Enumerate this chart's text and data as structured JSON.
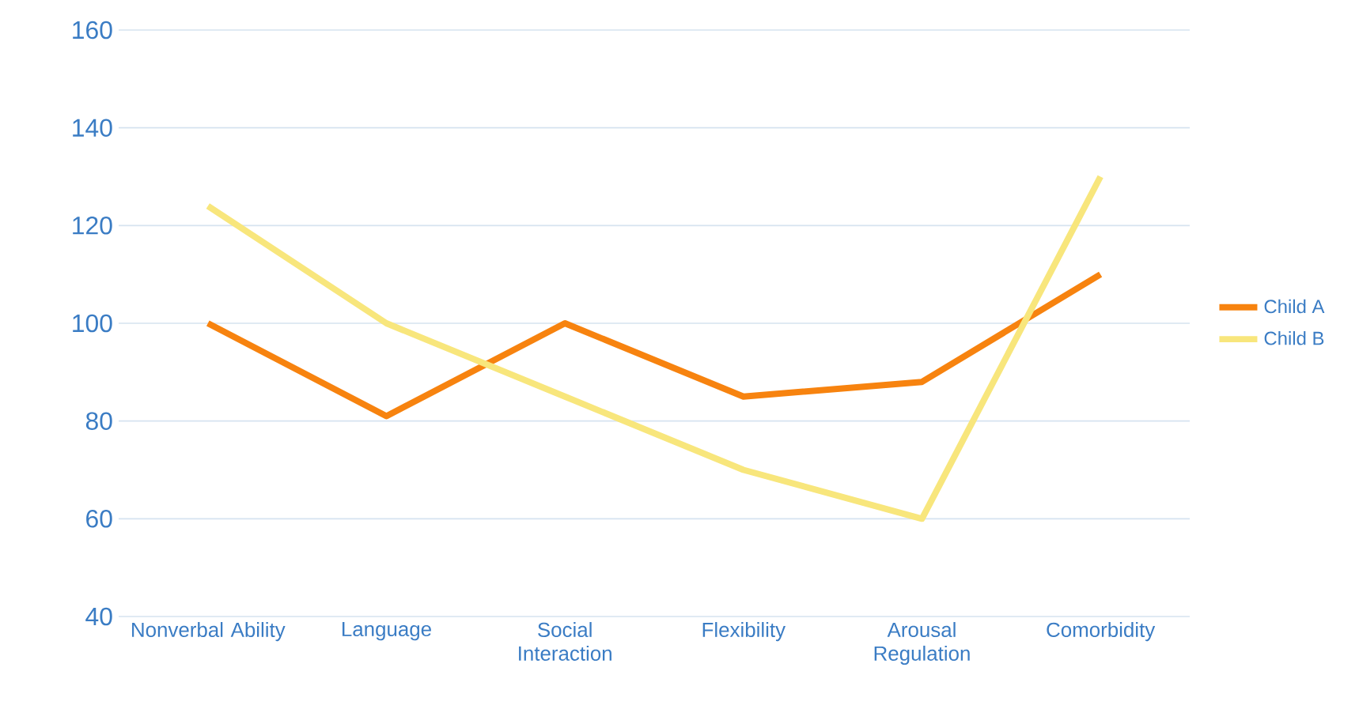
{
  "chart_data": {
    "type": "line",
    "categories": [
      "Nonverbal Ability",
      "Language",
      "Social Interaction",
      "Flexibility",
      "Arousal Regulation",
      "Comorbidity"
    ],
    "series": [
      {
        "name": "Child A",
        "color": "#f7830f",
        "values": [
          100,
          81,
          100,
          85,
          88,
          110
        ]
      },
      {
        "name": "Child B",
        "color": "#f8e67c",
        "values": [
          124,
          100,
          85,
          70,
          60,
          130
        ]
      }
    ],
    "ylim": [
      40,
      160
    ],
    "yticks": [
      40,
      60,
      80,
      100,
      120,
      140,
      160
    ],
    "grid": "y",
    "legend": "right",
    "marker": "none",
    "line_style": "solid"
  }
}
